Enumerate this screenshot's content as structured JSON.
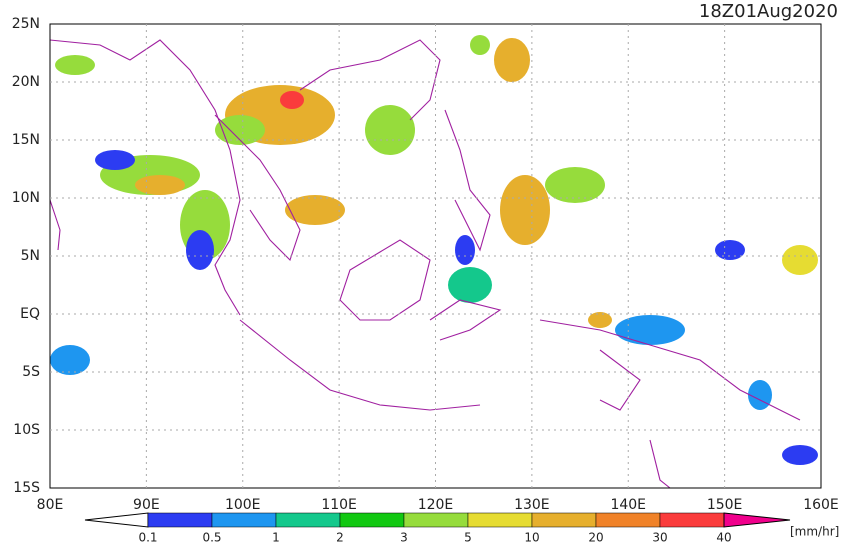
{
  "title": "18Z01Aug2020",
  "map": {
    "lon_labels": [
      "80E",
      "90E",
      "100E",
      "110E",
      "120E",
      "130E",
      "140E",
      "150E",
      "160E"
    ],
    "lat_labels": [
      "25N",
      "20N",
      "15N",
      "10N",
      "5N",
      "EQ",
      "5S",
      "10S",
      "15S"
    ]
  },
  "colorbar": {
    "labels": [
      "0.1",
      "0.5",
      "1",
      "2",
      "3",
      "5",
      "10",
      "20",
      "30",
      "40"
    ],
    "colors": [
      "#2c3cf2",
      "#1e96f0",
      "#14c88c",
      "#12c812",
      "#96dc3c",
      "#e6dc32",
      "#e6af2d",
      "#f08228",
      "#fa3c3c",
      "#f0008c"
    ],
    "unit": "[mm/hr]"
  }
}
